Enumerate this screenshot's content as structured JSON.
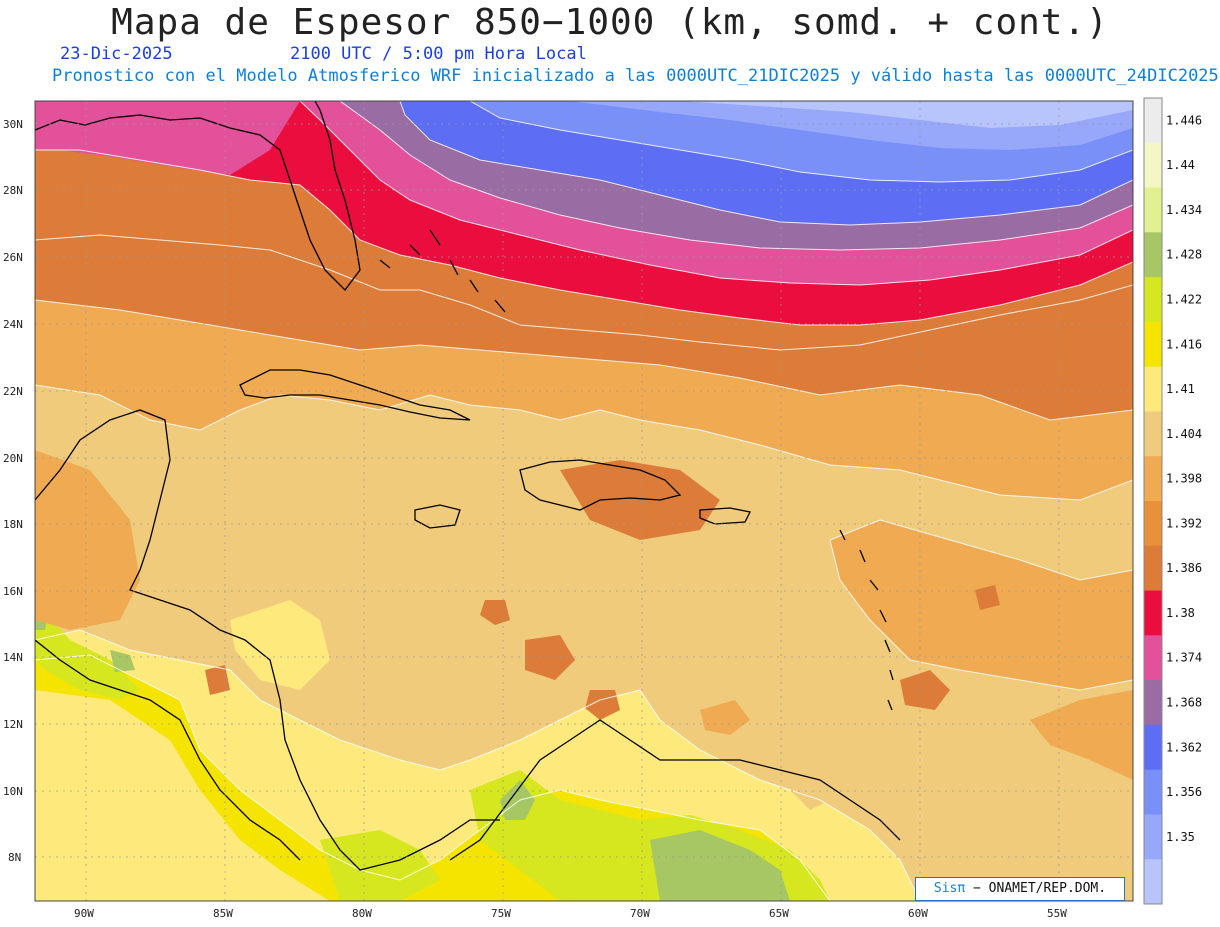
{
  "header": {
    "title": "Mapa de Espesor 850−1000 (km, somd. + cont.)",
    "date": "23-Dic-2025",
    "time": "2100 UTC / 5:00 pm Hora Local",
    "model_line": "Pronostico con el Modelo Atmosferico WRF inicializado a las 0000UTC_21DIC2025 y válido hasta las  0000UTC_24DIC2025"
  },
  "map": {
    "lat_labels": [
      "30N",
      "28N",
      "26N",
      "24N",
      "22N",
      "20N",
      "18N",
      "16N",
      "14N",
      "12N",
      "10N",
      "8N"
    ],
    "lon_labels": [
      "90W",
      "85W",
      "80W",
      "75W",
      "70W",
      "65W",
      "60W",
      "55W"
    ]
  },
  "colorbar": {
    "levels": [
      "1.446",
      "1.44",
      "1.434",
      "1.428",
      "1.422",
      "1.416",
      "1.41",
      "1.404",
      "1.398",
      "1.392",
      "1.386",
      "1.38",
      "1.374",
      "1.368",
      "1.362",
      "1.356",
      "1.35"
    ],
    "colors": [
      "#ececec",
      "#f4f7c4",
      "#e2f090",
      "#a7c765",
      "#d6e61f",
      "#f4e400",
      "#fde97c",
      "#f0cb7c",
      "#efaa52",
      "#e8913a",
      "#dc7c38",
      "#ec0d3f",
      "#e2519a",
      "#9a6ca4",
      "#5d6ef4",
      "#7890f8",
      "#97a7fa",
      "#b8c4fc"
    ]
  },
  "credit": {
    "sis": "Sisπ",
    "org": " − ONAMET/REP.DOM."
  }
}
